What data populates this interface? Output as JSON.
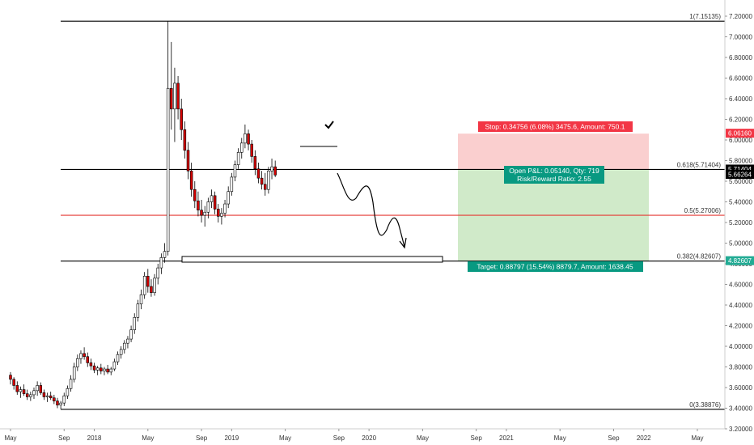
{
  "colors": {
    "fib_line": "#000000",
    "fib_mid_line": "#e53935",
    "candle_up": "#ffffff",
    "candle_down": "#d50000",
    "candle_outline": "#000000",
    "stop_zone": "#f9c7c7",
    "target_zone": "#c8e6c0",
    "stop_label_bg": "#f23645",
    "target_label_bg": "#089981",
    "price_tag_dark": "#000000",
    "price_tag_red": "#f23645",
    "price_tag_green": "#22ab94"
  },
  "fib_levels": [
    {
      "label": "1(7.15135)",
      "price": 7.15135,
      "color": "fib_line"
    },
    {
      "label": "0.618(5.71404)",
      "price": 5.71404,
      "color": "fib_line"
    },
    {
      "label": "0.5(5.27006)",
      "price": 5.27006,
      "color": "fib_mid_line"
    },
    {
      "label": "0.382(4.82607)",
      "price": 4.82607,
      "color": "fib_line"
    },
    {
      "label": "0(3.38876)",
      "price": 3.38876,
      "color": "fib_line"
    }
  ],
  "position": {
    "stop_text": "Stop: 0.34756 (6.08%) 3475.6, Amount: 750.1",
    "pnl_text": "Open P&L: 0.05140, Qty: 719",
    "rr_text": "Risk/Reward Ratio: 2.55",
    "target_text": "Target: 0.88797 (15.54%) 8879.7, Amount: 1638.45",
    "entry_price": 5.71404,
    "stop_price": 6.0616,
    "target_price": 4.82607
  },
  "price_tags": [
    {
      "text": "6.06160",
      "price": 6.0616,
      "color": "price_tag_red"
    },
    {
      "text": "5.71404",
      "price": 5.71404,
      "color": "price_tag_dark"
    },
    {
      "text": "5.66264",
      "price": 5.66264,
      "color": "price_tag_dark"
    },
    {
      "text": "4.82607",
      "price": 4.82607,
      "color": "price_tag_green"
    }
  ],
  "chart_data": {
    "type": "candlestick",
    "title": "",
    "y_axis_ticks": [
      "7.20000",
      "7.00000",
      "6.80000",
      "6.60000",
      "6.40000",
      "6.20000",
      "6.00000",
      "5.80000",
      "5.60000",
      "5.40000",
      "5.20000",
      "5.00000",
      "4.80000",
      "4.60000",
      "4.40000",
      "4.20000",
      "4.00000",
      "3.80000",
      "3.60000",
      "3.40000",
      "3.20000"
    ],
    "y_tick_values": [
      7.2,
      7.0,
      6.8,
      6.6,
      6.4,
      6.2,
      6.0,
      5.8,
      5.6,
      5.4,
      5.2,
      5.0,
      4.8,
      4.6,
      4.4,
      4.2,
      4.0,
      3.8,
      3.6,
      3.4,
      3.2
    ],
    "ylim": [
      3.2,
      7.25
    ],
    "x_axis_ticks": [
      "May",
      "Sep",
      "2018",
      "May",
      "Sep",
      "2019",
      "May",
      "Sep",
      "2020",
      "May",
      "Sep",
      "2021",
      "May",
      "Sep",
      "2022",
      "May"
    ],
    "x_tick_index": [
      0,
      16,
      25,
      41,
      57,
      66,
      82,
      98,
      107,
      123,
      139,
      148,
      164,
      180,
      189,
      205
    ],
    "weeks_to_last_tick": 205,
    "candles_ohlc": [
      [
        3.72,
        3.75,
        3.63,
        3.68
      ],
      [
        3.68,
        3.7,
        3.58,
        3.62
      ],
      [
        3.62,
        3.66,
        3.53,
        3.56
      ],
      [
        3.56,
        3.61,
        3.5,
        3.58
      ],
      [
        3.58,
        3.63,
        3.52,
        3.54
      ],
      [
        3.54,
        3.58,
        3.48,
        3.51
      ],
      [
        3.51,
        3.56,
        3.47,
        3.53
      ],
      [
        3.53,
        3.6,
        3.49,
        3.57
      ],
      [
        3.57,
        3.66,
        3.52,
        3.62
      ],
      [
        3.62,
        3.65,
        3.53,
        3.55
      ],
      [
        3.55,
        3.58,
        3.48,
        3.51
      ],
      [
        3.51,
        3.55,
        3.46,
        3.52
      ],
      [
        3.52,
        3.56,
        3.48,
        3.5
      ],
      [
        3.5,
        3.53,
        3.44,
        3.47
      ],
      [
        3.47,
        3.5,
        3.4,
        3.43
      ],
      [
        3.43,
        3.47,
        3.39,
        3.45
      ],
      [
        3.45,
        3.55,
        3.42,
        3.52
      ],
      [
        3.52,
        3.62,
        3.49,
        3.59
      ],
      [
        3.59,
        3.72,
        3.56,
        3.68
      ],
      [
        3.68,
        3.84,
        3.65,
        3.8
      ],
      [
        3.8,
        3.92,
        3.76,
        3.88
      ],
      [
        3.88,
        3.96,
        3.83,
        3.93
      ],
      [
        3.93,
        3.99,
        3.87,
        3.9
      ],
      [
        3.9,
        3.94,
        3.8,
        3.84
      ],
      [
        3.84,
        3.88,
        3.77,
        3.81
      ],
      [
        3.81,
        3.84,
        3.74,
        3.77
      ],
      [
        3.77,
        3.81,
        3.72,
        3.79
      ],
      [
        3.79,
        3.83,
        3.73,
        3.76
      ],
      [
        3.76,
        3.8,
        3.72,
        3.78
      ],
      [
        3.78,
        3.82,
        3.73,
        3.75
      ],
      [
        3.75,
        3.8,
        3.72,
        3.78
      ],
      [
        3.78,
        3.88,
        3.76,
        3.85
      ],
      [
        3.85,
        3.95,
        3.82,
        3.92
      ],
      [
        3.92,
        4.0,
        3.88,
        3.97
      ],
      [
        3.97,
        4.06,
        3.93,
        4.03
      ],
      [
        4.03,
        4.1,
        3.98,
        4.07
      ],
      [
        4.07,
        4.2,
        4.04,
        4.16
      ],
      [
        4.16,
        4.32,
        4.12,
        4.28
      ],
      [
        4.28,
        4.45,
        4.24,
        4.41
      ],
      [
        4.41,
        4.55,
        4.36,
        4.5
      ],
      [
        4.5,
        4.72,
        4.46,
        4.68
      ],
      [
        4.68,
        4.75,
        4.52,
        4.58
      ],
      [
        4.58,
        4.65,
        4.48,
        4.52
      ],
      [
        4.52,
        4.7,
        4.49,
        4.66
      ],
      [
        4.66,
        4.8,
        4.6,
        4.76
      ],
      [
        4.76,
        4.9,
        4.7,
        4.86
      ],
      [
        4.86,
        5.0,
        4.81,
        4.92
      ],
      [
        4.92,
        7.15,
        4.88,
        6.5
      ],
      [
        6.5,
        6.95,
        6.1,
        6.3
      ],
      [
        6.3,
        6.7,
        5.98,
        6.55
      ],
      [
        6.55,
        6.62,
        6.2,
        6.3
      ],
      [
        6.3,
        6.4,
        6.0,
        6.1
      ],
      [
        6.1,
        6.18,
        5.82,
        5.9
      ],
      [
        5.9,
        5.98,
        5.62,
        5.7
      ],
      [
        5.7,
        5.78,
        5.45,
        5.52
      ],
      [
        5.52,
        5.6,
        5.34,
        5.41
      ],
      [
        5.41,
        5.5,
        5.26,
        5.32
      ],
      [
        5.32,
        5.42,
        5.2,
        5.27
      ],
      [
        5.27,
        5.36,
        5.16,
        5.3
      ],
      [
        5.3,
        5.44,
        5.24,
        5.4
      ],
      [
        5.4,
        5.52,
        5.34,
        5.46
      ],
      [
        5.46,
        5.5,
        5.28,
        5.33
      ],
      [
        5.33,
        5.38,
        5.2,
        5.26
      ],
      [
        5.26,
        5.34,
        5.18,
        5.29
      ],
      [
        5.29,
        5.42,
        5.25,
        5.38
      ],
      [
        5.38,
        5.55,
        5.34,
        5.5
      ],
      [
        5.5,
        5.68,
        5.46,
        5.64
      ],
      [
        5.64,
        5.8,
        5.6,
        5.76
      ],
      [
        5.76,
        5.92,
        5.72,
        5.88
      ],
      [
        5.88,
        6.02,
        5.82,
        5.97
      ],
      [
        5.97,
        6.15,
        5.92,
        6.06
      ],
      [
        6.06,
        6.1,
        5.9,
        5.96
      ],
      [
        5.96,
        6.0,
        5.78,
        5.84
      ],
      [
        5.84,
        5.9,
        5.66,
        5.72
      ],
      [
        5.72,
        5.78,
        5.58,
        5.63
      ],
      [
        5.63,
        5.7,
        5.52,
        5.57
      ],
      [
        5.57,
        5.68,
        5.46,
        5.52
      ],
      [
        5.52,
        5.74,
        5.48,
        5.7
      ],
      [
        5.7,
        5.82,
        5.62,
        5.74
      ],
      [
        5.74,
        5.8,
        5.64,
        5.66
      ]
    ]
  }
}
